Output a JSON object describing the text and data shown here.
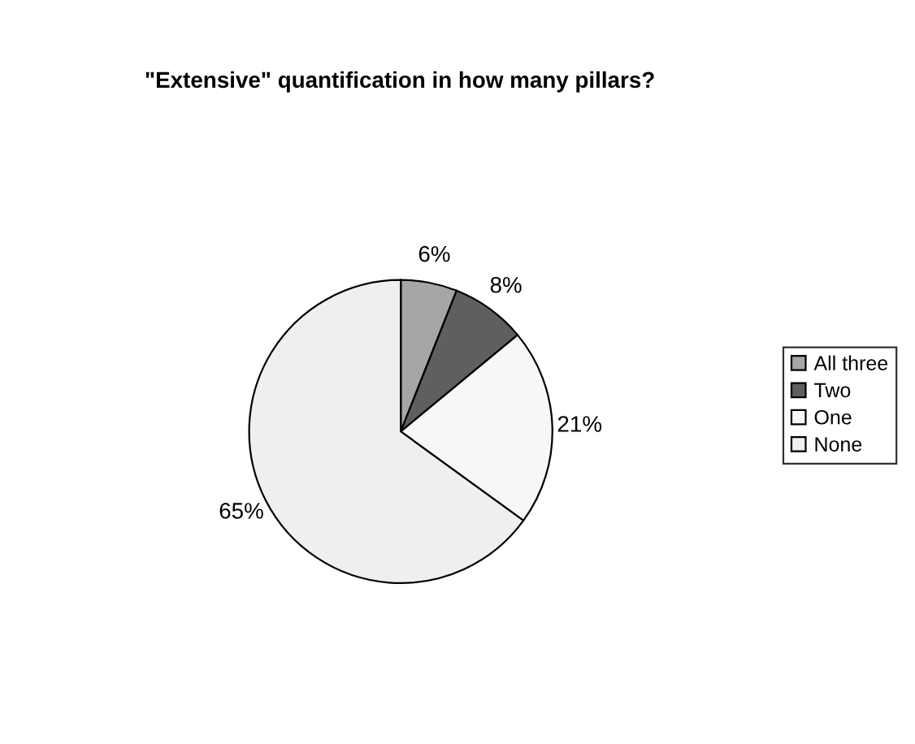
{
  "chart_data": {
    "type": "pie",
    "title": "\"Extensive\" quantification in how many pillars?",
    "categories": [
      "All three",
      "Two",
      "One",
      "None"
    ],
    "values": [
      6,
      8,
      21,
      65
    ],
    "colors": [
      "#a6a6a6",
      "#5f5f5f",
      "#f7f7f7",
      "#efefef"
    ],
    "value_labels": [
      "6%",
      "8%",
      "21%",
      "65%"
    ],
    "legend": "right"
  }
}
